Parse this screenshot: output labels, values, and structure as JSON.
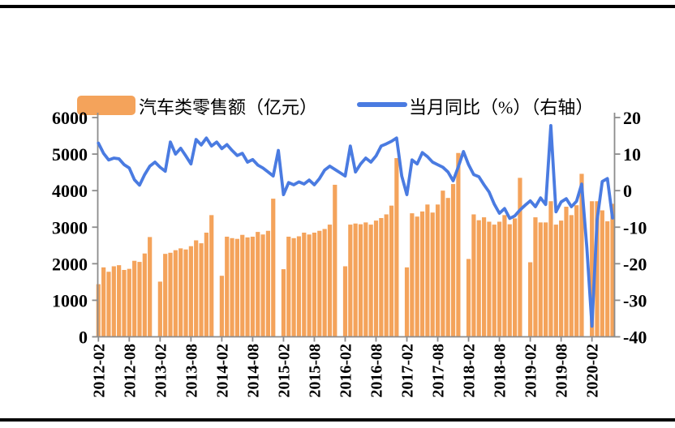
{
  "legend": {
    "bars_label": "汽车类零售额（亿元）",
    "line_label": "当月同比（%）（右轴）"
  },
  "colors": {
    "bar": "#F4A35B",
    "line": "#4A7BE1",
    "axis": "#8C8C8C",
    "text": "#000000",
    "rule": "#000000"
  },
  "chart_data": {
    "type": "bar+line",
    "title": "",
    "xlabel": "",
    "ylabel_left": "汽车类零售额（亿元）",
    "ylabel_right": "当月同比（%）",
    "grid": false,
    "legend_position": "top",
    "x": [
      "2012-02",
      "2012-03",
      "2012-04",
      "2012-05",
      "2012-06",
      "2012-07",
      "2012-08",
      "2012-09",
      "2012-10",
      "2012-11",
      "2012-12",
      "2013-01",
      "2013-02",
      "2013-03",
      "2013-04",
      "2013-05",
      "2013-06",
      "2013-07",
      "2013-08",
      "2013-09",
      "2013-10",
      "2013-11",
      "2013-12",
      "2014-01",
      "2014-02",
      "2014-03",
      "2014-04",
      "2014-05",
      "2014-06",
      "2014-07",
      "2014-08",
      "2014-09",
      "2014-10",
      "2014-11",
      "2014-12",
      "2015-01",
      "2015-02",
      "2015-03",
      "2015-04",
      "2015-05",
      "2015-06",
      "2015-07",
      "2015-08",
      "2015-09",
      "2015-10",
      "2015-11",
      "2015-12",
      "2016-01",
      "2016-02",
      "2016-03",
      "2016-04",
      "2016-05",
      "2016-06",
      "2016-07",
      "2016-08",
      "2016-09",
      "2016-10",
      "2016-11",
      "2016-12",
      "2017-01",
      "2017-02",
      "2017-03",
      "2017-04",
      "2017-05",
      "2017-06",
      "2017-07",
      "2017-08",
      "2017-09",
      "2017-10",
      "2017-11",
      "2017-12",
      "2018-01",
      "2018-02",
      "2018-03",
      "2018-04",
      "2018-05",
      "2018-06",
      "2018-07",
      "2018-08",
      "2018-09",
      "2018-10",
      "2018-11",
      "2018-12",
      "2019-01",
      "2019-02",
      "2019-03",
      "2019-04",
      "2019-05",
      "2019-06",
      "2019-07",
      "2019-08",
      "2019-09",
      "2019-10",
      "2019-11",
      "2019-12",
      "2020-01",
      "2020-02",
      "2020-03",
      "2020-04",
      "2020-05",
      "2020-06"
    ],
    "series": [
      {
        "name": "汽车类零售额（亿元）",
        "type": "bar",
        "axis": "left",
        "values": [
          1440,
          1900,
          1780,
          1930,
          1960,
          1830,
          1860,
          2080,
          2050,
          2280,
          2730,
          null,
          1510,
          2270,
          2300,
          2370,
          2420,
          2390,
          2480,
          2640,
          2560,
          2850,
          3330,
          null,
          1670,
          2740,
          2700,
          2680,
          2790,
          2720,
          2740,
          2870,
          2800,
          2900,
          3780,
          null,
          1850,
          2740,
          2700,
          2750,
          2850,
          2800,
          2850,
          2900,
          2950,
          3070,
          4160,
          null,
          1930,
          3070,
          3100,
          3080,
          3130,
          3070,
          3180,
          3250,
          3350,
          3590,
          4890,
          null,
          1900,
          3380,
          3290,
          3430,
          3620,
          3400,
          3620,
          4000,
          3800,
          4180,
          5030,
          null,
          2130,
          3350,
          3190,
          3270,
          3150,
          3070,
          3150,
          3330,
          3080,
          3240,
          4350,
          null,
          2040,
          3270,
          3130,
          3130,
          3710,
          3070,
          3180,
          3560,
          3330,
          3600,
          4460,
          null,
          3710,
          3710,
          3460,
          3160,
          3640
        ]
      },
      {
        "name": "当月同比（%）（右轴）",
        "type": "line",
        "axis": "right",
        "values": [
          13.0,
          10.2,
          8.4,
          8.9,
          8.7,
          7.1,
          6.2,
          3.0,
          1.5,
          4.4,
          6.7,
          7.8,
          6.4,
          5.3,
          13.3,
          10.0,
          11.6,
          9.5,
          7.3,
          14.0,
          12.5,
          14.4,
          12.2,
          13.3,
          11.5,
          12.6,
          11.0,
          9.6,
          10.2,
          7.8,
          8.5,
          7.0,
          6.2,
          5.1,
          4.0,
          11.0,
          -1.1,
          2.2,
          1.6,
          2.4,
          1.8,
          2.9,
          1.6,
          3.3,
          5.6,
          6.7,
          5.8,
          4.9,
          4.0,
          12.2,
          5.1,
          7.3,
          8.9,
          7.8,
          9.5,
          12.2,
          12.8,
          13.5,
          14.4,
          4.0,
          -1.1,
          8.4,
          7.3,
          10.4,
          9.3,
          7.8,
          7.1,
          6.4,
          5.1,
          2.7,
          6.5,
          10.7,
          7.1,
          4.4,
          3.8,
          1.6,
          -0.4,
          -3.7,
          -6.2,
          -4.9,
          -7.6,
          -6.9,
          -5.3,
          -4.0,
          -2.8,
          -4.4,
          -2.0,
          -3.8,
          17.8,
          -5.8,
          -3.1,
          -2.2,
          -4.4,
          -2.9,
          1.8,
          -15.5,
          -37.1,
          -8.0,
          2.5,
          3.3,
          -7.5
        ]
      }
    ],
    "left_axis": {
      "range": [
        0,
        6000
      ],
      "tick_labels": [
        "0",
        "1000",
        "2000",
        "3000",
        "4000",
        "5000",
        "6000"
      ],
      "tick_values": [
        0,
        1000,
        2000,
        3000,
        4000,
        5000,
        6000
      ]
    },
    "right_axis": {
      "range": [
        -40,
        20
      ],
      "tick_labels": [
        "-40",
        "-30",
        "-20",
        "-10",
        "0",
        "10",
        "20"
      ],
      "tick_values": [
        -40,
        -30,
        -20,
        -10,
        0,
        10,
        20
      ]
    },
    "x_tick_labels": [
      "2012-02",
      "2012-08",
      "2013-02",
      "2013-08",
      "2014-02",
      "2014-08",
      "2015-02",
      "2015-08",
      "2016-02",
      "2016-08",
      "2017-02",
      "2017-08",
      "2018-02",
      "2018-08",
      "2019-02",
      "2019-08",
      "2020-02"
    ]
  }
}
